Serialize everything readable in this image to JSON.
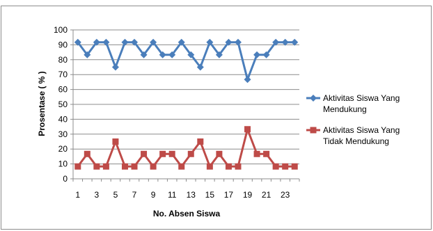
{
  "chart_data": {
    "type": "line",
    "title": "",
    "xlabel": "No. Absen Siswa",
    "ylabel": "Prosentase ( % )",
    "ylim": [
      0,
      100
    ],
    "yticks": [
      0,
      10,
      20,
      30,
      40,
      50,
      60,
      70,
      80,
      90,
      100
    ],
    "x": [
      1,
      2,
      3,
      4,
      5,
      6,
      7,
      8,
      9,
      10,
      11,
      12,
      13,
      14,
      15,
      16,
      17,
      18,
      19,
      20,
      21,
      22,
      23,
      24
    ],
    "xtick_labels": [
      "1",
      "3",
      "5",
      "7",
      "9",
      "11",
      "13",
      "15",
      "17",
      "19",
      "21",
      "23"
    ],
    "grid": "horizontal",
    "legend_position": "right",
    "series": [
      {
        "name": "Aktivitas Siswa Yang Mendukung",
        "legend_lines": [
          "Aktivitas Siswa Yang",
          "Mendukung"
        ],
        "color": "#4a7ebb",
        "marker": "diamond",
        "values": [
          91.7,
          83.3,
          91.7,
          91.7,
          75,
          91.7,
          91.7,
          83.3,
          91.7,
          83.3,
          83.3,
          91.7,
          83.3,
          75,
          91.7,
          83.3,
          91.7,
          91.7,
          66.7,
          83.3,
          83.3,
          91.7,
          91.7,
          91.7
        ]
      },
      {
        "name": "Aktivitas Siswa Yang Tidak Mendukung",
        "legend_lines": [
          "Aktivitas Siswa Yang",
          "Tidak Mendukung"
        ],
        "color": "#be4b48",
        "marker": "square",
        "values": [
          8.3,
          16.7,
          8.3,
          8.3,
          25,
          8.3,
          8.3,
          16.7,
          8.3,
          16.7,
          16.7,
          8.3,
          16.7,
          25,
          8.3,
          16.7,
          8.3,
          8.3,
          33.3,
          16.7,
          16.7,
          8.3,
          8.3,
          8.3
        ]
      }
    ]
  }
}
